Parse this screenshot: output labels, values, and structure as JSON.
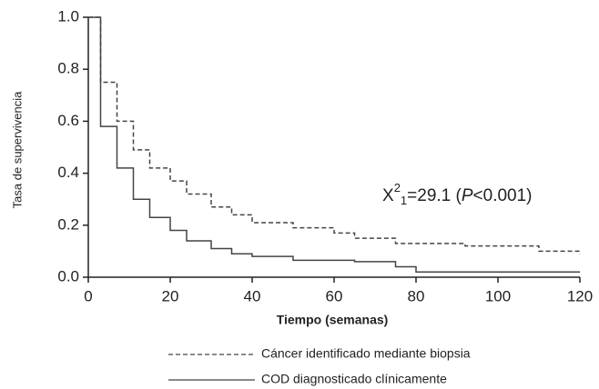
{
  "chart_data": {
    "type": "line",
    "step": "post",
    "x_label": "Tiempo (semanas)",
    "y_label": "Tasa de supervivencia",
    "annotation": [
      "X",
      "2",
      "1",
      "=29.1 (",
      "P",
      "<0.001)"
    ],
    "xlim": [
      0,
      120
    ],
    "xticks": [
      0,
      20,
      40,
      60,
      80,
      100,
      120
    ],
    "ylim": [
      0,
      1
    ],
    "yticks": [
      {
        "value": 0,
        "label": "0.0"
      },
      0.2,
      0.4,
      0.6,
      0.8,
      {
        "value": 1,
        "label": "1.0"
      }
    ],
    "series": [
      {
        "name": "Cáncer identificado mediante biopsia",
        "color": "#444444",
        "line_style": "dashed",
        "x": [
          0,
          3,
          7,
          11,
          15,
          20,
          24,
          30,
          35,
          40,
          50,
          60,
          65,
          75,
          92,
          110,
          120
        ],
        "values": [
          1,
          0.75,
          0.6,
          0.49,
          0.42,
          0.37,
          0.32,
          0.27,
          0.24,
          0.21,
          0.19,
          0.17,
          0.15,
          0.13,
          0.12,
          0.1,
          0.09
        ]
      },
      {
        "name": "COD diagnosticado clínicamente",
        "color": "#444444",
        "line_style": "solid",
        "x": [
          0,
          3,
          7,
          11,
          15,
          20,
          24,
          30,
          35,
          40,
          50,
          65,
          75,
          80,
          120
        ],
        "values": [
          1,
          0.58,
          0.42,
          0.3,
          0.23,
          0.18,
          0.14,
          0.11,
          0.09,
          0.08,
          0.065,
          0.06,
          0.04,
          0.02,
          0.02
        ]
      }
    ]
  }
}
